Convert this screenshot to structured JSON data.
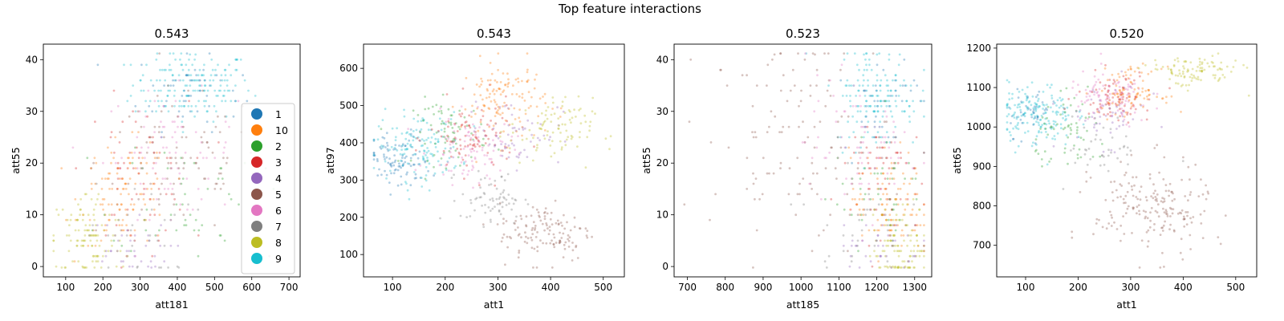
{
  "figure": {
    "title": "Top feature interactions"
  },
  "palette": {
    "1": "#1f77b4",
    "10": "#ff7f0e",
    "2": "#2ca02c",
    "3": "#d62728",
    "4": "#9467bd",
    "5": "#8c564b",
    "6": "#e377c2",
    "7": "#7f7f7f",
    "8": "#bcbd22",
    "9": "#17becf"
  },
  "legend": {
    "labels": [
      "1",
      "10",
      "2",
      "3",
      "4",
      "5",
      "6",
      "7",
      "8",
      "9"
    ],
    "location": "lower-right of first panel"
  },
  "chart_data": [
    {
      "type": "scatter",
      "title": "0.543",
      "xlabel": "att181",
      "ylabel": "att55",
      "xlim": [
        40,
        730
      ],
      "ylim": [
        -2,
        43
      ],
      "xticks": [
        100,
        200,
        300,
        400,
        500,
        600,
        700
      ],
      "yticks": [
        0,
        10,
        20,
        30,
        40
      ],
      "clusters": [
        {
          "cls": "9",
          "cx": 440,
          "cy": 35,
          "sx": 80,
          "sy": 3.5,
          "n": 170
        },
        {
          "cls": "1",
          "cx": 430,
          "cy": 34,
          "sx": 70,
          "sy": 4,
          "n": 50
        },
        {
          "cls": "6",
          "cx": 380,
          "cy": 22,
          "sx": 90,
          "sy": 6,
          "n": 90
        },
        {
          "cls": "5",
          "cx": 400,
          "cy": 20,
          "sx": 110,
          "sy": 7,
          "n": 90
        },
        {
          "cls": "10",
          "cx": 260,
          "cy": 14,
          "sx": 60,
          "sy": 5,
          "n": 120
        },
        {
          "cls": "3",
          "cx": 290,
          "cy": 18,
          "sx": 70,
          "sy": 7,
          "n": 60
        },
        {
          "cls": "8",
          "cx": 160,
          "cy": 5,
          "sx": 50,
          "sy": 5,
          "n": 110
        },
        {
          "cls": "2",
          "cx": 420,
          "cy": 14,
          "sx": 100,
          "sy": 6,
          "n": 50
        },
        {
          "cls": "4",
          "cx": 260,
          "cy": 3,
          "sx": 60,
          "sy": 3,
          "n": 40
        },
        {
          "cls": "7",
          "cx": 300,
          "cy": 6,
          "sx": 70,
          "sy": 5,
          "n": 30
        }
      ]
    },
    {
      "type": "scatter",
      "title": "0.543",
      "xlabel": "att1",
      "ylabel": "att97",
      "xlim": [
        45,
        540
      ],
      "ylim": [
        40,
        665
      ],
      "xticks": [
        100,
        200,
        300,
        400,
        500
      ],
      "yticks": [
        100,
        200,
        300,
        400,
        500,
        600
      ],
      "clusters": [
        {
          "cls": "1",
          "cx": 110,
          "cy": 350,
          "sx": 30,
          "sy": 40,
          "n": 100
        },
        {
          "cls": "9",
          "cx": 150,
          "cy": 390,
          "sx": 40,
          "sy": 45,
          "n": 130
        },
        {
          "cls": "2",
          "cx": 210,
          "cy": 430,
          "sx": 35,
          "sy": 45,
          "n": 70
        },
        {
          "cls": "10",
          "cx": 310,
          "cy": 510,
          "sx": 40,
          "sy": 55,
          "n": 130
        },
        {
          "cls": "3",
          "cx": 250,
          "cy": 410,
          "sx": 40,
          "sy": 50,
          "n": 90
        },
        {
          "cls": "6",
          "cx": 250,
          "cy": 380,
          "sx": 40,
          "sy": 45,
          "n": 90
        },
        {
          "cls": "4",
          "cx": 330,
          "cy": 430,
          "sx": 45,
          "sy": 45,
          "n": 60
        },
        {
          "cls": "8",
          "cx": 400,
          "cy": 430,
          "sx": 40,
          "sy": 45,
          "n": 90
        },
        {
          "cls": "7",
          "cx": 290,
          "cy": 250,
          "sx": 30,
          "sy": 35,
          "n": 70
        },
        {
          "cls": "5",
          "cx": 390,
          "cy": 160,
          "sx": 45,
          "sy": 40,
          "n": 130
        }
      ]
    },
    {
      "type": "scatter",
      "title": "0.523",
      "xlabel": "att185",
      "ylabel": "att55",
      "xlim": [
        665,
        1345
      ],
      "ylim": [
        -2,
        43
      ],
      "xticks": [
        700,
        800,
        900,
        1000,
        1100,
        1200,
        1300
      ],
      "yticks": [
        0,
        10,
        20,
        30,
        40
      ],
      "clusters": [
        {
          "cls": "9",
          "cx": 1200,
          "cy": 33,
          "sx": 55,
          "sy": 5,
          "n": 160
        },
        {
          "cls": "1",
          "cx": 1210,
          "cy": 32,
          "sx": 50,
          "sy": 5,
          "n": 40
        },
        {
          "cls": "5",
          "cx": 1000,
          "cy": 25,
          "sx": 120,
          "sy": 10,
          "n": 130
        },
        {
          "cls": "6",
          "cx": 1150,
          "cy": 23,
          "sx": 70,
          "sy": 7,
          "n": 80
        },
        {
          "cls": "3",
          "cx": 1200,
          "cy": 18,
          "sx": 60,
          "sy": 6,
          "n": 60
        },
        {
          "cls": "2",
          "cx": 1200,
          "cy": 14,
          "sx": 60,
          "sy": 5,
          "n": 50
        },
        {
          "cls": "10",
          "cx": 1230,
          "cy": 12,
          "sx": 50,
          "sy": 5,
          "n": 110
        },
        {
          "cls": "8",
          "cx": 1270,
          "cy": 4,
          "sx": 40,
          "sy": 4,
          "n": 110
        },
        {
          "cls": "4",
          "cx": 1200,
          "cy": 4,
          "sx": 60,
          "sy": 3,
          "n": 40
        },
        {
          "cls": "7",
          "cx": 1150,
          "cy": 8,
          "sx": 60,
          "sy": 5,
          "n": 30
        }
      ]
    },
    {
      "type": "scatter",
      "title": "0.520",
      "xlabel": "att1",
      "ylabel": "att65",
      "xlim": [
        45,
        540
      ],
      "ylim": [
        620,
        1210
      ],
      "xticks": [
        100,
        200,
        300,
        400,
        500
      ],
      "yticks": [
        700,
        800,
        900,
        1000,
        1100,
        1200
      ],
      "clusters": [
        {
          "cls": "9",
          "cx": 120,
          "cy": 1030,
          "sx": 35,
          "sy": 40,
          "n": 170
        },
        {
          "cls": "1",
          "cx": 110,
          "cy": 1040,
          "sx": 25,
          "sy": 30,
          "n": 40
        },
        {
          "cls": "2",
          "cx": 190,
          "cy": 980,
          "sx": 35,
          "sy": 45,
          "n": 60
        },
        {
          "cls": "6",
          "cx": 260,
          "cy": 1070,
          "sx": 40,
          "sy": 35,
          "n": 100
        },
        {
          "cls": "3",
          "cx": 270,
          "cy": 1080,
          "sx": 35,
          "sy": 30,
          "n": 80
        },
        {
          "cls": "10",
          "cx": 300,
          "cy": 1090,
          "sx": 30,
          "sy": 30,
          "n": 90
        },
        {
          "cls": "4",
          "cx": 250,
          "cy": 1030,
          "sx": 40,
          "sy": 40,
          "n": 50
        },
        {
          "cls": "8",
          "cx": 420,
          "cy": 1140,
          "sx": 45,
          "sy": 20,
          "n": 100
        },
        {
          "cls": "7",
          "cx": 250,
          "cy": 950,
          "sx": 35,
          "sy": 40,
          "n": 40
        },
        {
          "cls": "5",
          "cx": 340,
          "cy": 790,
          "sx": 55,
          "sy": 60,
          "n": 190
        }
      ]
    }
  ]
}
